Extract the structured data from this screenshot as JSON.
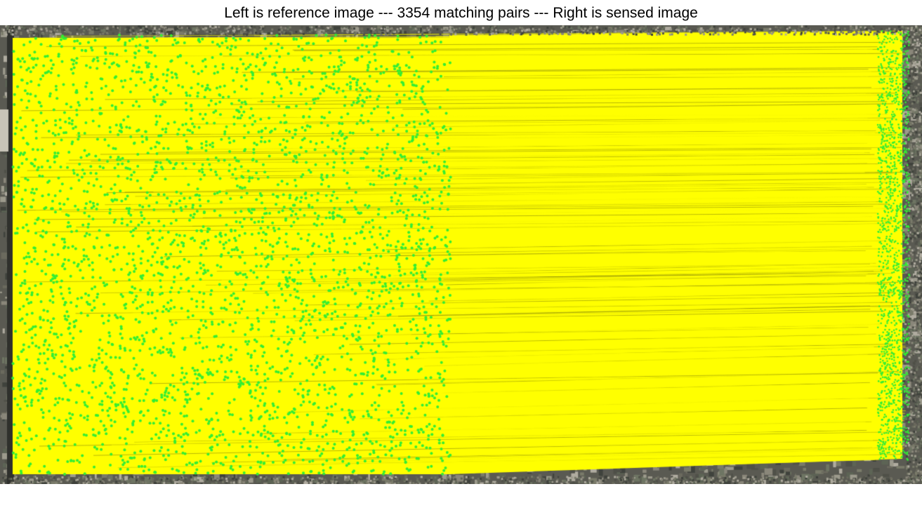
{
  "figure": {
    "title": "Left is reference image --- 3354 matching pairs --- Right is sensed image",
    "matching_pairs": 3354,
    "left_image_label": "reference image",
    "right_image_label": "sensed image"
  },
  "colors": {
    "match_line": "#ffff00",
    "keypoint": "#33ee33",
    "background": "#ffffff"
  },
  "content": {
    "left_panel": "aerial urban imagery with matched keypoints",
    "right_panel": "aerial urban imagery with matched keypoints"
  }
}
